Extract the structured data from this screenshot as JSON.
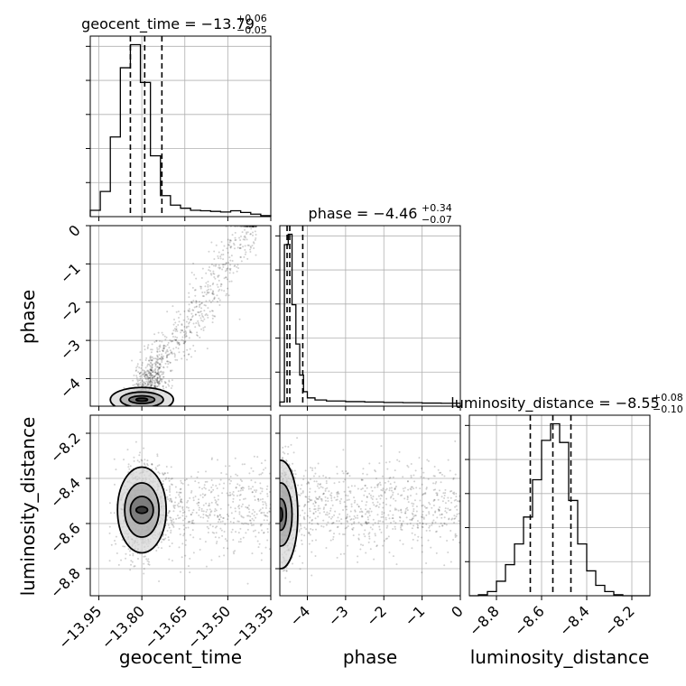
{
  "chart_data": {
    "type": "corner",
    "grid": true,
    "parameters": [
      "geocent_time",
      "phase",
      "luminosity_distance"
    ],
    "axis_labels": [
      "geocent_time",
      "phase",
      "luminosity_distance"
    ],
    "ticks": {
      "geocent_time": {
        "values": [
          -13.95,
          -13.8,
          -13.65,
          -13.5,
          -13.35
        ],
        "labels": [
          "−13.95",
          "−13.80",
          "−13.65",
          "−13.50",
          "−13.35"
        ]
      },
      "phase": {
        "values": [
          -4,
          -3,
          -2,
          -1,
          0
        ],
        "labels": [
          "−4",
          "−3",
          "−2",
          "−1",
          "0"
        ]
      },
      "luminosity_distance": {
        "values": [
          -8.8,
          -8.6,
          -8.4,
          -8.2
        ],
        "labels": [
          "−8.8",
          "−8.6",
          "−8.4",
          "−8.2"
        ]
      }
    },
    "ranges": {
      "geocent_time": [
        -13.98,
        -13.35
      ],
      "phase": [
        -4.72,
        0.0
      ],
      "luminosity_distance": [
        -8.92,
        -8.12
      ]
    },
    "titles": [
      {
        "parameter": "geocent_time",
        "prefix": "geocent_time = −13.79",
        "plus": "+0.06",
        "minus": "−0.05"
      },
      {
        "parameter": "phase",
        "prefix": "phase = −4.46",
        "plus": "+0.34",
        "minus": "−0.07"
      },
      {
        "parameter": "luminosity_distance",
        "prefix": "luminosity_distance = −8.55",
        "plus": "+0.08",
        "minus": "−0.10"
      }
    ],
    "quantiles": {
      "geocent_time": [
        -13.84,
        -13.79,
        -13.73
      ],
      "phase": [
        -4.53,
        -4.46,
        -4.12
      ],
      "luminosity_distance": [
        -8.65,
        -8.55,
        -8.47
      ]
    },
    "histograms": {
      "geocent_time": {
        "edges": [
          -13.98,
          -13.945,
          -13.91,
          -13.875,
          -13.84,
          -13.805,
          -13.77,
          -13.735,
          -13.7,
          -13.665,
          -13.63,
          -13.595,
          -13.56,
          -13.525,
          -13.49,
          -13.455,
          -13.42,
          -13.385,
          -13.35
        ],
        "counts": [
          0.3,
          1.2,
          3.8,
          7.1,
          8.2,
          6.4,
          2.9,
          1.0,
          0.55,
          0.4,
          0.3,
          0.28,
          0.25,
          0.22,
          0.28,
          0.2,
          0.12,
          0.05
        ]
      },
      "phase": {
        "edges": [
          -4.72,
          -4.6,
          -4.5,
          -4.4,
          -4.3,
          -4.2,
          -4.1,
          -4.0,
          -3.8,
          -3.5,
          -3.0,
          -2.5,
          -2.0,
          -1.5,
          -1.0,
          -0.5,
          0.0
        ],
        "counts": [
          0.2,
          7.8,
          8.3,
          4.9,
          3.0,
          1.5,
          0.7,
          0.4,
          0.3,
          0.25,
          0.22,
          0.2,
          0.18,
          0.17,
          0.15,
          0.14
        ]
      },
      "luminosity_distance": {
        "edges": [
          -8.92,
          -8.88,
          -8.84,
          -8.8,
          -8.76,
          -8.72,
          -8.68,
          -8.64,
          -8.6,
          -8.56,
          -8.52,
          -8.48,
          -8.44,
          -8.4,
          -8.36,
          -8.32,
          -8.28,
          -8.24,
          -8.2,
          -8.16,
          -8.12
        ],
        "counts": [
          0.0,
          0.05,
          0.2,
          0.7,
          1.5,
          2.5,
          3.8,
          5.6,
          7.5,
          8.3,
          7.4,
          4.6,
          2.5,
          1.2,
          0.5,
          0.2,
          0.05,
          0.0,
          0.0,
          0.0
        ]
      }
    },
    "scatter_pairs": [
      {
        "x": "geocent_time",
        "y": "phase"
      },
      {
        "x": "geocent_time",
        "y": "luminosity_distance"
      },
      {
        "x": "phase",
        "y": "luminosity_distance"
      }
    ],
    "contours": [
      {
        "x": "geocent_time",
        "y": "phase",
        "center": [
          -13.8,
          -4.55
        ],
        "radii": [
          [
            0.02,
            0.04
          ],
          [
            0.045,
            0.1
          ],
          [
            0.075,
            0.2
          ],
          [
            0.11,
            0.32
          ]
        ]
      },
      {
        "x": "geocent_time",
        "y": "luminosity_distance",
        "center": [
          -13.8,
          -8.54
        ],
        "radii": [
          [
            0.02,
            0.015
          ],
          [
            0.04,
            0.06
          ],
          [
            0.06,
            0.12
          ],
          [
            0.085,
            0.19
          ]
        ]
      },
      {
        "x": "phase",
        "y": "luminosity_distance",
        "center": [
          -4.7,
          -8.56
        ],
        "radii": [
          [
            0.05,
            0.03
          ],
          [
            0.15,
            0.07
          ],
          [
            0.3,
            0.14
          ],
          [
            0.45,
            0.24
          ]
        ]
      }
    ]
  }
}
